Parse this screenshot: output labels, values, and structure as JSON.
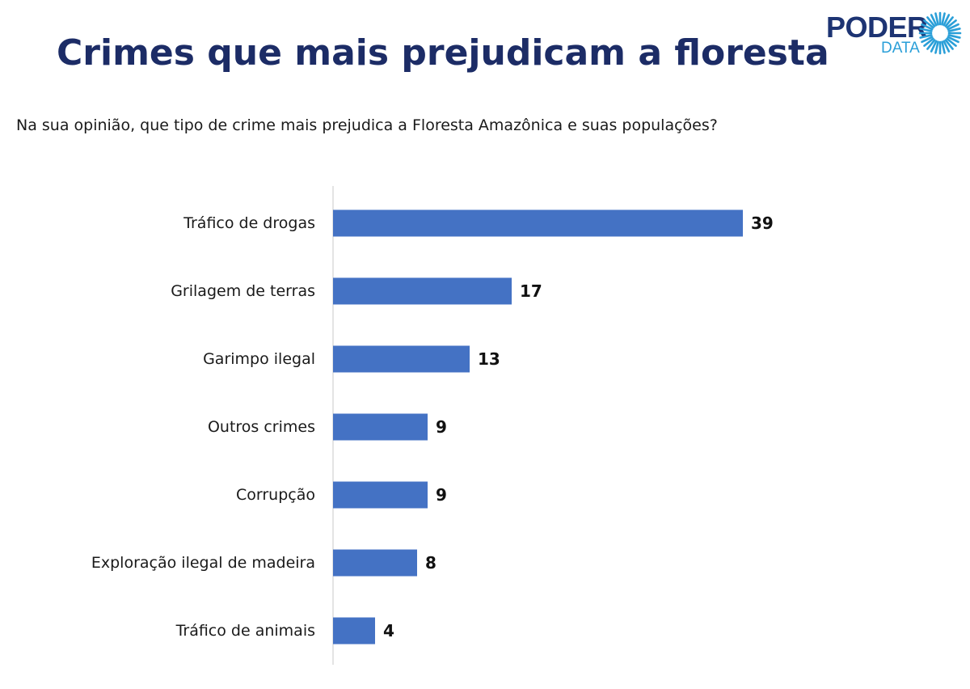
{
  "header": {
    "title": "Crimes que mais prejudicam a floresta",
    "question": "Na sua opinião, que tipo de crime mais prejudica a Floresta Amazônica e suas populações?"
  },
  "logo": {
    "word_main": "PODER",
    "word_sub": "DATA",
    "icon": "sunburst-icon",
    "colors": {
      "main": "#1d3473",
      "accent": "#2a9fd8"
    }
  },
  "chart_data": {
    "type": "bar",
    "orientation": "horizontal",
    "categories": [
      "Tráfico de drogas",
      "Grilagem de terras",
      "Garimpo ilegal",
      "Outros crimes",
      "Corrupção",
      "Exploração ilegal de madeira",
      "Tráfico de animais"
    ],
    "values": [
      39,
      17,
      13,
      9,
      9,
      8,
      4
    ],
    "data_labels": [
      "39",
      "17",
      "13",
      "9",
      "9",
      "8",
      "4"
    ],
    "xlim": [
      0,
      40
    ],
    "bar_color": "#4472c4",
    "grid": false,
    "legend": "none"
  }
}
